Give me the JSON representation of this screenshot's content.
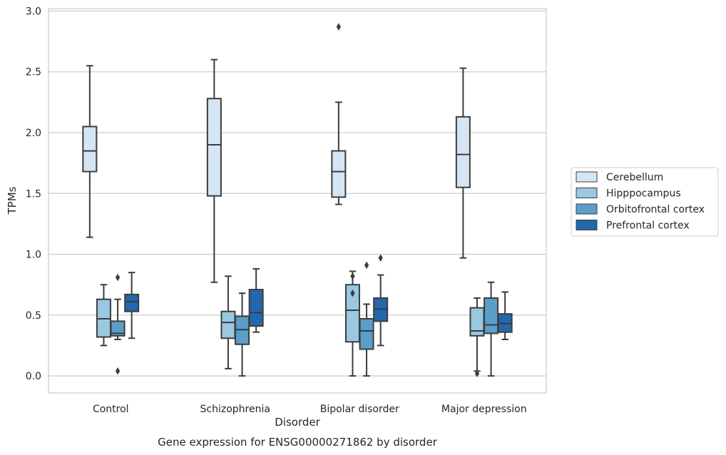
{
  "chart_data": {
    "type": "box",
    "title": "",
    "caption": "Gene expression for ENSG00000271862 by disorder",
    "xlabel": "Disorder",
    "ylabel": "TPMs",
    "ylim": [
      -0.14,
      3.02
    ],
    "yticks": [
      0.0,
      0.5,
      1.0,
      1.5,
      2.0,
      2.5,
      3.0
    ],
    "grid": "horizontal",
    "legend_position": "right",
    "categories": [
      "Control",
      "Schizophrenia",
      "Bipolar disorder",
      "Major depression"
    ],
    "series": [
      {
        "name": "Cerebellum",
        "color": "#d6e5f4",
        "boxes": [
          {
            "whislo": 1.14,
            "q1": 1.68,
            "med": 1.85,
            "q3": 2.05,
            "whishi": 2.55,
            "fliers": []
          },
          {
            "whislo": 0.77,
            "q1": 1.48,
            "med": 1.9,
            "q3": 2.28,
            "whishi": 2.6,
            "fliers": []
          },
          {
            "whislo": 1.41,
            "q1": 1.47,
            "med": 1.68,
            "q3": 1.85,
            "whishi": 2.25,
            "fliers": [
              2.87
            ]
          },
          {
            "whislo": 0.97,
            "q1": 1.55,
            "med": 1.82,
            "q3": 2.13,
            "whishi": 2.53,
            "fliers": []
          }
        ]
      },
      {
        "name": "Hipppocampus",
        "color": "#9ac8e0",
        "boxes": [
          {
            "whislo": 0.25,
            "q1": 0.32,
            "med": 0.47,
            "q3": 0.63,
            "whishi": 0.75,
            "fliers": []
          },
          {
            "whislo": 0.06,
            "q1": 0.31,
            "med": 0.44,
            "q3": 0.53,
            "whishi": 0.82,
            "fliers": []
          },
          {
            "whislo": 0.0,
            "q1": 0.28,
            "med": 0.54,
            "q3": 0.75,
            "whishi": 0.86,
            "fliers": [
              0.68,
              0.82
            ]
          },
          {
            "whislo": 0.04,
            "q1": 0.33,
            "med": 0.37,
            "q3": 0.56,
            "whishi": 0.64,
            "fliers": [
              0.02
            ]
          }
        ]
      },
      {
        "name": "Orbitofrontal cortex",
        "color": "#5a9ec9",
        "boxes": [
          {
            "whislo": 0.3,
            "q1": 0.33,
            "med": 0.35,
            "q3": 0.45,
            "whishi": 0.63,
            "fliers": [
              0.81,
              0.04
            ]
          },
          {
            "whislo": 0.0,
            "q1": 0.26,
            "med": 0.38,
            "q3": 0.49,
            "whishi": 0.68,
            "fliers": []
          },
          {
            "whislo": 0.0,
            "q1": 0.22,
            "med": 0.37,
            "q3": 0.47,
            "whishi": 0.59,
            "fliers": [
              0.91
            ]
          },
          {
            "whislo": 0.0,
            "q1": 0.35,
            "med": 0.42,
            "q3": 0.64,
            "whishi": 0.77,
            "fliers": []
          }
        ]
      },
      {
        "name": "Prefrontal cortex",
        "color": "#2367ad",
        "boxes": [
          {
            "whislo": 0.31,
            "q1": 0.53,
            "med": 0.61,
            "q3": 0.67,
            "whishi": 0.85,
            "fliers": []
          },
          {
            "whislo": 0.36,
            "q1": 0.41,
            "med": 0.52,
            "q3": 0.71,
            "whishi": 0.88,
            "fliers": []
          },
          {
            "whislo": 0.25,
            "q1": 0.45,
            "med": 0.55,
            "q3": 0.64,
            "whishi": 0.83,
            "fliers": [
              0.97
            ]
          },
          {
            "whislo": 0.3,
            "q1": 0.36,
            "med": 0.43,
            "q3": 0.51,
            "whishi": 0.69,
            "fliers": []
          }
        ]
      }
    ]
  }
}
